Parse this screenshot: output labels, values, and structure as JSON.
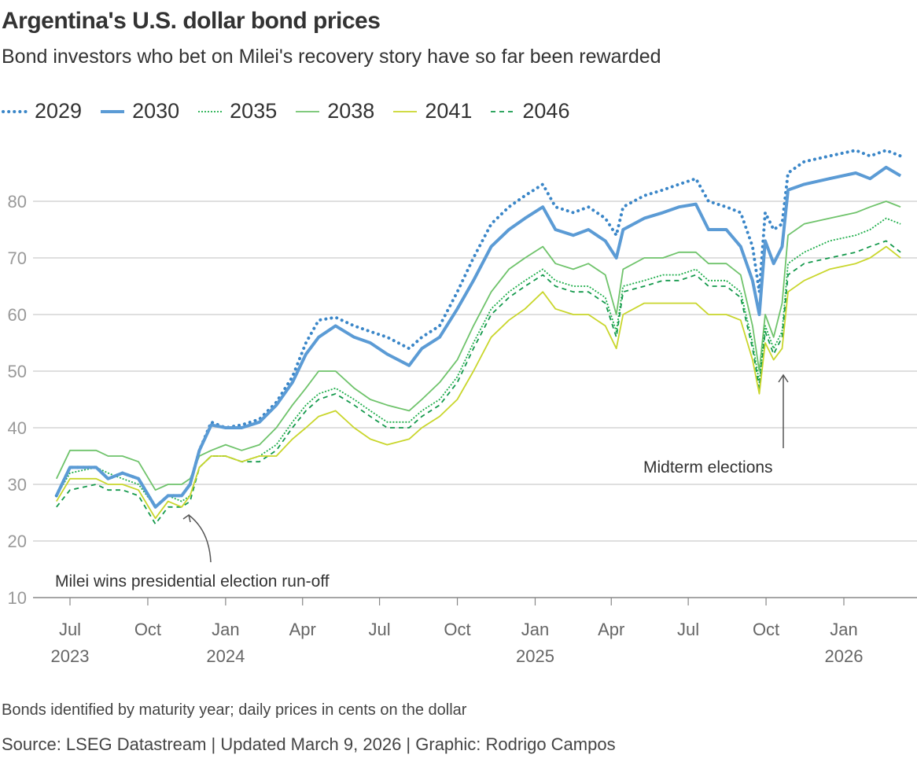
{
  "title": "Argentina's U.S. dollar bond prices",
  "subtitle": "Bond investors who bet on Milei's recovery story have so far been rewarded",
  "footnote": "Bonds identified by maturity year; daily prices in cents on the dollar",
  "source": "Source: LSEG Datastream | Updated March 9, 2026 | Graphic: Rodrigo Campos",
  "chart_data": {
    "type": "line",
    "title": "Argentina's U.S. dollar bond prices",
    "xlabel": "",
    "ylabel": "",
    "ylim": [
      10,
      90
    ],
    "yticks": [
      10,
      20,
      30,
      40,
      50,
      60,
      70,
      80
    ],
    "grid": true,
    "legend_placement": "top-left",
    "xticks": [
      {
        "date": "2023-07-01",
        "label": "Jul",
        "year": "2023"
      },
      {
        "date": "2023-10-01",
        "label": "Oct",
        "year": ""
      },
      {
        "date": "2024-01-01",
        "label": "Jan",
        "year": "2024"
      },
      {
        "date": "2024-04-01",
        "label": "Apr",
        "year": ""
      },
      {
        "date": "2024-07-01",
        "label": "Jul",
        "year": ""
      },
      {
        "date": "2024-10-01",
        "label": "Oct",
        "year": ""
      },
      {
        "date": "2025-01-01",
        "label": "Jan",
        "year": "2025"
      },
      {
        "date": "2025-04-01",
        "label": "Apr",
        "year": ""
      },
      {
        "date": "2025-07-01",
        "label": "Jul",
        "year": ""
      },
      {
        "date": "2025-10-01",
        "label": "Oct",
        "year": ""
      },
      {
        "date": "2026-01-01",
        "label": "Jan",
        "year": "2026"
      }
    ],
    "x": [
      "2023-06-15",
      "2023-07-01",
      "2023-08-01",
      "2023-08-15",
      "2023-09-01",
      "2023-09-20",
      "2023-10-10",
      "2023-10-25",
      "2023-11-10",
      "2023-11-20",
      "2023-12-01",
      "2023-12-15",
      "2024-01-01",
      "2024-01-20",
      "2024-02-10",
      "2024-03-01",
      "2024-03-20",
      "2024-04-05",
      "2024-04-20",
      "2024-05-10",
      "2024-06-01",
      "2024-06-20",
      "2024-07-10",
      "2024-08-05",
      "2024-08-20",
      "2024-09-10",
      "2024-10-01",
      "2024-10-20",
      "2024-11-10",
      "2024-12-01",
      "2024-12-20",
      "2025-01-10",
      "2025-01-25",
      "2025-02-15",
      "2025-03-05",
      "2025-03-25",
      "2025-04-07",
      "2025-04-15",
      "2025-05-10",
      "2025-06-01",
      "2025-06-20",
      "2025-07-10",
      "2025-07-25",
      "2025-08-15",
      "2025-09-01",
      "2025-09-15",
      "2025-09-23",
      "2025-09-30",
      "2025-10-10",
      "2025-10-20",
      "2025-10-27",
      "2025-11-15",
      "2025-12-15",
      "2026-01-15",
      "2026-02-01",
      "2026-02-20",
      "2026-03-09"
    ],
    "series": [
      {
        "name": "2029",
        "color": "#3a86c8",
        "style": "dotted",
        "width": 4,
        "values": [
          28,
          33,
          33,
          31,
          32,
          31,
          26,
          28,
          28,
          30,
          36,
          41,
          40,
          40.5,
          41.5,
          44.5,
          49,
          55,
          59,
          59.5,
          58,
          57,
          56,
          54,
          56,
          58,
          64,
          70,
          76,
          79,
          81,
          83,
          79,
          78,
          79,
          77,
          74,
          79,
          81,
          82,
          83,
          84,
          80,
          79,
          78,
          72,
          64,
          78,
          75,
          76,
          85,
          87,
          88,
          89,
          88,
          89,
          88
        ]
      },
      {
        "name": "2030",
        "color": "#5b9bd5",
        "style": "solid",
        "width": 4,
        "values": [
          28,
          33,
          33,
          31,
          32,
          31,
          26,
          28,
          28,
          30,
          36,
          40.5,
          40,
          40,
          41,
          44,
          48,
          53,
          56,
          58,
          56,
          55,
          53,
          51,
          54,
          56,
          61,
          66,
          72,
          75,
          77,
          79,
          75,
          74,
          75,
          73,
          70,
          75,
          77,
          78,
          79,
          79.5,
          75,
          75,
          72,
          66,
          60,
          73,
          69,
          72,
          82,
          83,
          84,
          85,
          84,
          86,
          84.5
        ]
      },
      {
        "name": "2035",
        "color": "#1fae4b",
        "style": "dotted-fine",
        "width": 1.8,
        "values": [
          28,
          32,
          33,
          32,
          31,
          30,
          26,
          28,
          27,
          28,
          33,
          35,
          35,
          34,
          35,
          37,
          41,
          44,
          46,
          47,
          45,
          43,
          41,
          41,
          43,
          45,
          49,
          55,
          61,
          64,
          66,
          68,
          66,
          65,
          65,
          63,
          57,
          65,
          66,
          67,
          67,
          68,
          66,
          66,
          64,
          55,
          48,
          58,
          54,
          57,
          69,
          71,
          73,
          74,
          75,
          77,
          76
        ]
      },
      {
        "name": "2038",
        "color": "#6fc36b",
        "style": "solid",
        "width": 1.8,
        "values": [
          31,
          36,
          36,
          35,
          35,
          34,
          29,
          30,
          30,
          31,
          35,
          36,
          37,
          36,
          37,
          40,
          44,
          47,
          50,
          50,
          47,
          45,
          44,
          43,
          45,
          48,
          52,
          58,
          64,
          68,
          70,
          72,
          69,
          68,
          69,
          67,
          60,
          68,
          70,
          70,
          71,
          71,
          69,
          69,
          67,
          58,
          50,
          60,
          56,
          62,
          74,
          76,
          77,
          78,
          79,
          80,
          79
        ]
      },
      {
        "name": "2041",
        "color": "#c9d62c",
        "style": "solid",
        "width": 1.8,
        "values": [
          27,
          31,
          31,
          30,
          30,
          29,
          24,
          27,
          26,
          28,
          33,
          35,
          35,
          34,
          35,
          35,
          38,
          40,
          42,
          43,
          40,
          38,
          37,
          38,
          40,
          42,
          45,
          50,
          56,
          59,
          61,
          64,
          61,
          60,
          60,
          58,
          54,
          60,
          62,
          62,
          62,
          62,
          60,
          60,
          59,
          52,
          46,
          55,
          52,
          54,
          64,
          66,
          68,
          69,
          70,
          72,
          70
        ]
      },
      {
        "name": "2046",
        "color": "#14994c",
        "style": "dashed",
        "width": 1.8,
        "values": [
          26,
          29,
          30,
          29,
          29,
          28,
          23,
          26,
          26,
          27,
          33,
          35,
          35,
          34,
          34,
          36,
          40,
          43,
          45,
          46,
          44,
          42,
          40,
          40,
          42,
          44,
          48,
          54,
          60,
          63,
          65,
          67,
          65,
          64,
          64,
          62,
          56,
          64,
          65,
          66,
          66,
          67,
          65,
          65,
          63,
          54,
          47,
          57,
          53,
          56,
          67,
          69,
          70,
          71,
          72,
          73,
          71
        ]
      }
    ],
    "annotations": [
      {
        "text": "Milei wins presidential election run-off",
        "date": "2023-11-20"
      },
      {
        "text": "Midterm elections",
        "date": "2025-10-26"
      }
    ]
  }
}
